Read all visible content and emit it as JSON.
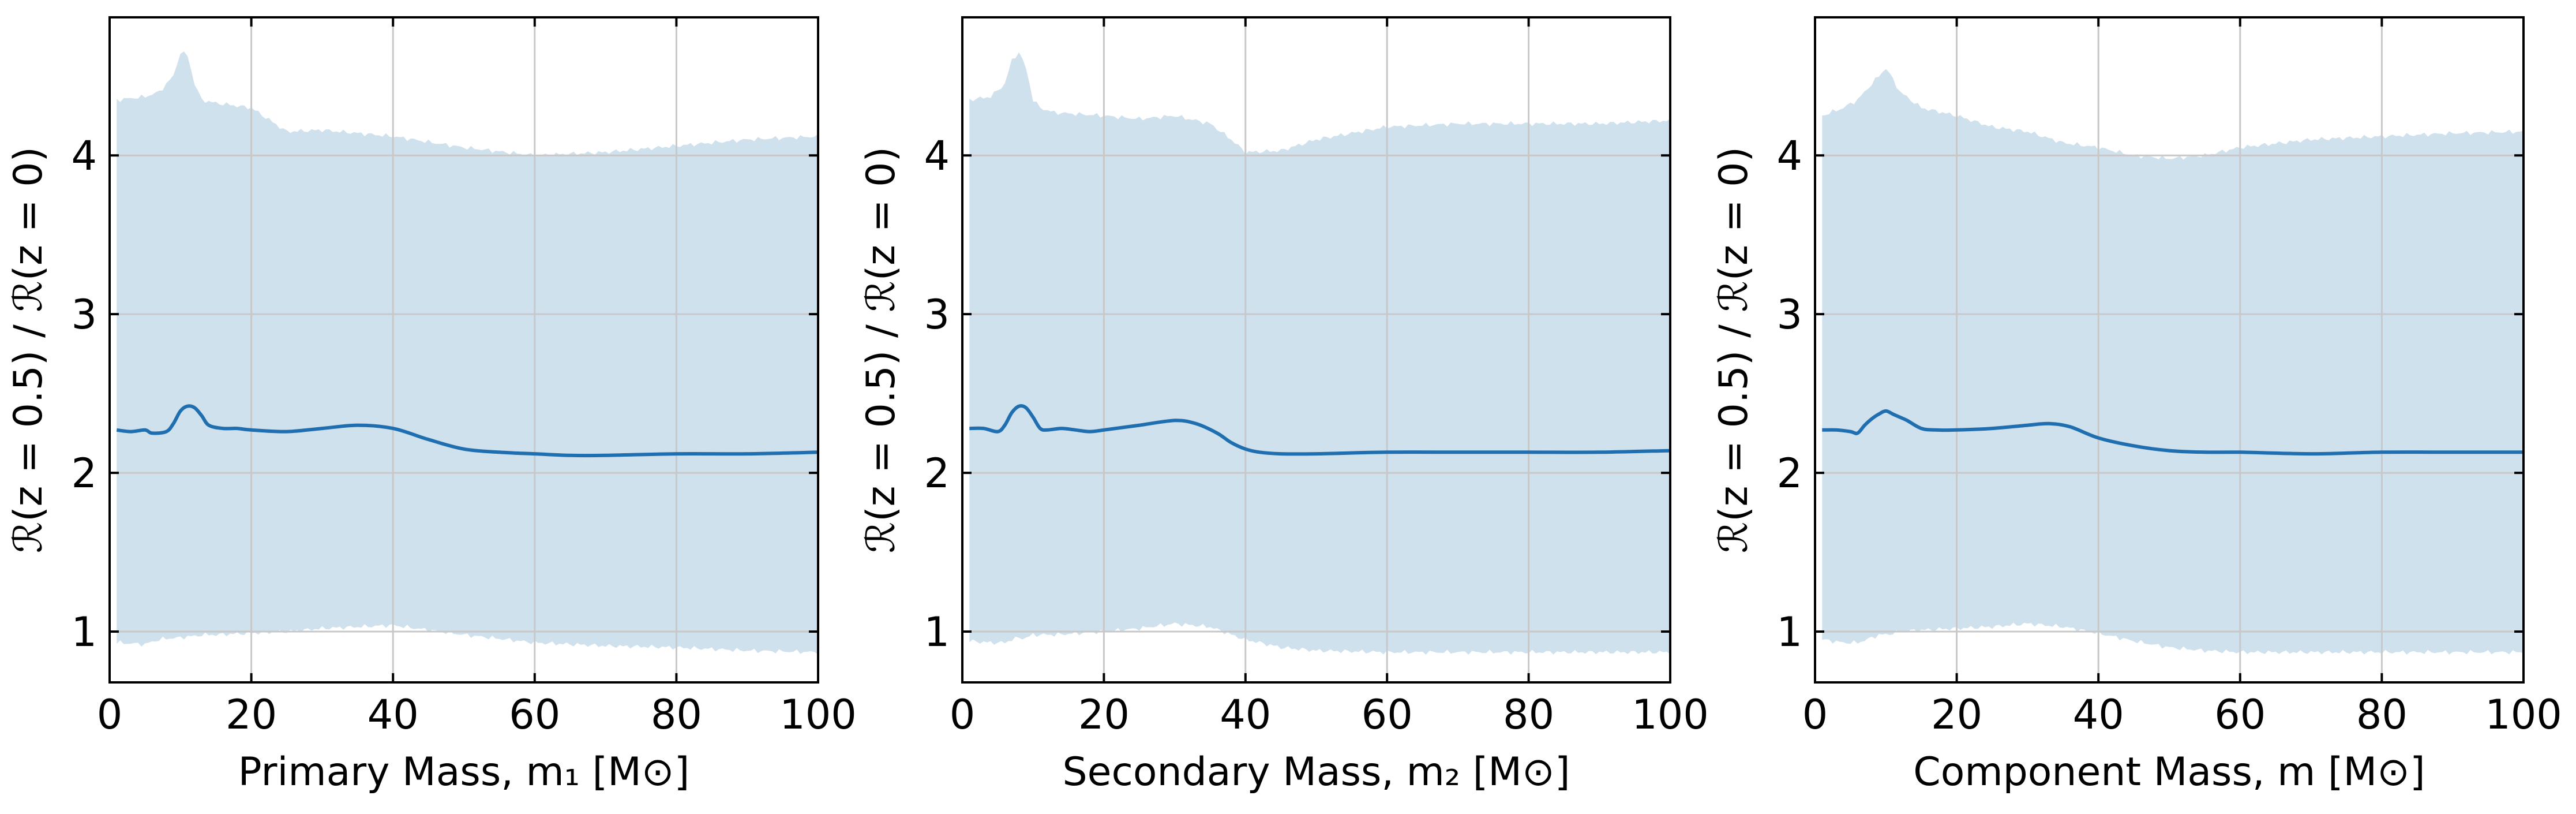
{
  "chart_data": [
    {
      "type": "area",
      "xlabel": "Primary Mass, m₁ [M⊙]",
      "ylabel": "ℛ(z = 0.5) / ℛ(z = 0)",
      "xlim": [
        0,
        100
      ],
      "ylim": [
        0.68,
        4.87
      ],
      "xticks": [
        0,
        20,
        40,
        60,
        80,
        100
      ],
      "yticks": [
        1,
        2,
        3,
        4
      ],
      "grid": true,
      "colors": {
        "band": "#d0e1ee",
        "median": "#1f6fb0"
      },
      "series": [
        {
          "kind": "median",
          "x": [
            1,
            3,
            5,
            6,
            8,
            9,
            10,
            11,
            12,
            13,
            14,
            16,
            18,
            20,
            25,
            30,
            35,
            40,
            45,
            50,
            55,
            60,
            65,
            70,
            80,
            90,
            100
          ],
          "y": [
            2.27,
            2.26,
            2.27,
            2.25,
            2.26,
            2.31,
            2.39,
            2.42,
            2.41,
            2.36,
            2.3,
            2.28,
            2.28,
            2.27,
            2.26,
            2.28,
            2.3,
            2.28,
            2.21,
            2.15,
            2.13,
            2.12,
            2.11,
            2.11,
            2.12,
            2.12,
            2.13
          ]
        },
        {
          "kind": "band",
          "x": [
            1,
            5,
            7,
            9,
            10,
            11,
            12,
            13,
            15,
            20,
            25,
            30,
            40,
            50,
            60,
            70,
            80,
            90,
            100
          ],
          "upper": [
            4.35,
            4.37,
            4.4,
            4.5,
            4.65,
            4.63,
            4.45,
            4.35,
            4.33,
            4.3,
            4.15,
            4.16,
            4.12,
            4.05,
            4.0,
            4.02,
            4.06,
            4.1,
            4.12
          ],
          "lower": [
            0.93,
            0.92,
            0.95,
            0.96,
            0.96,
            0.97,
            0.97,
            0.98,
            0.98,
            0.99,
            1.0,
            1.02,
            1.04,
            0.98,
            0.93,
            0.91,
            0.9,
            0.88,
            0.87
          ]
        }
      ]
    },
    {
      "type": "area",
      "xlabel": "Secondary Mass, m₂ [M⊙]",
      "ylabel": "ℛ(z = 0.5) / ℛ(z = 0)",
      "xlim": [
        0,
        100
      ],
      "ylim": [
        0.68,
        4.87
      ],
      "xticks": [
        0,
        20,
        40,
        60,
        80,
        100
      ],
      "yticks": [
        1,
        2,
        3,
        4
      ],
      "grid": true,
      "colors": {
        "band": "#d0e1ee",
        "median": "#1f6fb0"
      },
      "series": [
        {
          "kind": "median",
          "x": [
            1,
            3,
            5,
            6,
            7,
            8,
            9,
            10,
            11,
            12,
            14,
            16,
            18,
            20,
            25,
            30,
            33,
            36,
            38,
            40,
            42,
            45,
            50,
            60,
            70,
            80,
            90,
            100
          ],
          "y": [
            2.28,
            2.28,
            2.26,
            2.3,
            2.38,
            2.42,
            2.41,
            2.35,
            2.28,
            2.27,
            2.28,
            2.27,
            2.26,
            2.27,
            2.3,
            2.33,
            2.31,
            2.25,
            2.19,
            2.15,
            2.13,
            2.12,
            2.12,
            2.13,
            2.13,
            2.13,
            2.13,
            2.14
          ]
        },
        {
          "kind": "band",
          "x": [
            1,
            4,
            6,
            7,
            8,
            9,
            10,
            11,
            13,
            20,
            25,
            30,
            35,
            38,
            40,
            45,
            50,
            60,
            70,
            80,
            90,
            100
          ],
          "upper": [
            4.35,
            4.37,
            4.45,
            4.6,
            4.65,
            4.55,
            4.35,
            4.3,
            4.27,
            4.25,
            4.23,
            4.25,
            4.2,
            4.1,
            4.02,
            4.03,
            4.1,
            4.18,
            4.2,
            4.2,
            4.2,
            4.22
          ],
          "lower": [
            0.94,
            0.93,
            0.93,
            0.95,
            0.96,
            0.96,
            0.98,
            0.98,
            0.98,
            1.0,
            1.02,
            1.05,
            1.03,
            0.98,
            0.95,
            0.9,
            0.88,
            0.87,
            0.87,
            0.87,
            0.87,
            0.87
          ]
        }
      ]
    },
    {
      "type": "area",
      "xlabel": "Component Mass, m [M⊙]",
      "ylabel": "ℛ(z = 0.5) / ℛ(z = 0)",
      "xlim": [
        0,
        100
      ],
      "ylim": [
        0.68,
        4.87
      ],
      "xticks": [
        0,
        20,
        40,
        60,
        80,
        100
      ],
      "yticks": [
        1,
        2,
        3,
        4
      ],
      "grid": true,
      "colors": {
        "band": "#d0e1ee",
        "median": "#1f6fb0"
      },
      "series": [
        {
          "kind": "median",
          "x": [
            1,
            3,
            5,
            6,
            7,
            8,
            9,
            10,
            11,
            12,
            13,
            15,
            17,
            20,
            25,
            30,
            33,
            36,
            40,
            45,
            50,
            55,
            60,
            70,
            80,
            90,
            100
          ],
          "y": [
            2.27,
            2.27,
            2.26,
            2.25,
            2.3,
            2.34,
            2.37,
            2.39,
            2.37,
            2.35,
            2.33,
            2.28,
            2.27,
            2.27,
            2.28,
            2.3,
            2.31,
            2.29,
            2.22,
            2.17,
            2.14,
            2.13,
            2.13,
            2.12,
            2.13,
            2.13,
            2.13
          ]
        },
        {
          "kind": "band",
          "x": [
            1,
            4,
            6,
            8,
            9,
            10,
            11,
            12,
            15,
            20,
            25,
            30,
            35,
            40,
            45,
            50,
            55,
            60,
            70,
            80,
            90,
            100
          ],
          "upper": [
            4.25,
            4.3,
            4.35,
            4.45,
            4.5,
            4.55,
            4.48,
            4.4,
            4.3,
            4.25,
            4.18,
            4.15,
            4.08,
            4.05,
            4.0,
            3.98,
            4.0,
            4.05,
            4.1,
            4.12,
            4.14,
            4.15
          ],
          "lower": [
            0.95,
            0.93,
            0.93,
            0.96,
            0.98,
            0.98,
            0.99,
            1.0,
            1.01,
            1.02,
            1.03,
            1.05,
            1.03,
            0.99,
            0.94,
            0.9,
            0.88,
            0.87,
            0.87,
            0.87,
            0.87,
            0.87
          ]
        }
      ]
    }
  ]
}
